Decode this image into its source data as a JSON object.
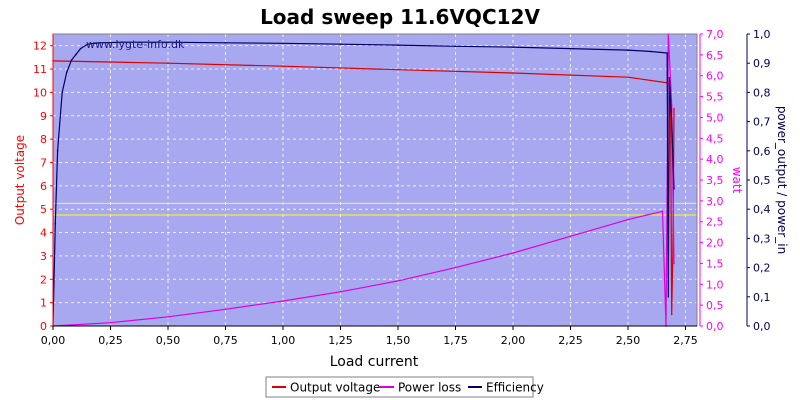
{
  "chart_data": {
    "type": "line",
    "title": "Load sweep 11.6VQC12V",
    "watermark": "www.lygte-info.dk",
    "xlabel": "Load current",
    "xlim": [
      0,
      2.8
    ],
    "x_ticks": [
      "0,00",
      "0,25",
      "0,50",
      "0,75",
      "1,00",
      "1,25",
      "1,50",
      "1,75",
      "2,00",
      "2,25",
      "2,50",
      "2,75"
    ],
    "axes": {
      "left": {
        "label": "Output voltage",
        "color": "#ff0000",
        "range": [
          0,
          12.5
        ],
        "ticks": [
          "0",
          "1",
          "2",
          "3",
          "4",
          "5",
          "6",
          "7",
          "8",
          "9",
          "10",
          "11",
          "12"
        ]
      },
      "right1": {
        "label": "watt",
        "color": "#ff00ff",
        "range": [
          0,
          7
        ],
        "ticks": [
          "0,0",
          "0,5",
          "1,0",
          "1,5",
          "2,0",
          "2,5",
          "3,0",
          "3,5",
          "4,0",
          "4,5",
          "5,0",
          "5,5",
          "6,0",
          "6,5",
          "7,0"
        ]
      },
      "right2": {
        "label": "power_output / power_in",
        "color": "#000055",
        "range": [
          0,
          1
        ],
        "ticks": [
          "0,0",
          "0,1",
          "0,2",
          "0,3",
          "0,4",
          "0,5",
          "0,6",
          "0,7",
          "0,8",
          "0,9",
          "1,0"
        ]
      }
    },
    "reference_lines": {
      "axis": "left",
      "values": [
        4.75,
        5.25
      ],
      "color": "#ffff00"
    },
    "series": [
      {
        "name": "Output voltage",
        "axis": "left",
        "color": "#dd0000",
        "x": [
          0,
          0.5,
          1.0,
          1.5,
          2.0,
          2.5,
          2.68,
          2.685,
          2.69,
          2.695,
          2.7
        ],
        "y": [
          11.35,
          11.25,
          11.12,
          10.97,
          10.83,
          10.65,
          10.4,
          9.0,
          0.5,
          3.2,
          9.3
        ]
      },
      {
        "name": "Power loss",
        "axis": "right1",
        "color": "#dd00dd",
        "x": [
          0,
          0.25,
          0.5,
          0.75,
          1.0,
          1.25,
          1.5,
          1.75,
          2.0,
          2.25,
          2.5,
          2.65,
          2.665,
          2.675,
          2.69,
          2.7
        ],
        "y": [
          0.0,
          0.08,
          0.22,
          0.4,
          0.6,
          0.82,
          1.08,
          1.4,
          1.75,
          2.15,
          2.55,
          2.75,
          0.0,
          7.0,
          5.3,
          1.5
        ]
      },
      {
        "name": "Efficiency",
        "axis": "right2",
        "color": "#000066",
        "x": [
          0,
          0.01,
          0.02,
          0.04,
          0.06,
          0.08,
          0.1,
          0.12,
          0.15,
          0.2,
          0.3,
          0.5,
          0.75,
          1.0,
          1.25,
          1.5,
          1.75,
          2.0,
          2.25,
          2.5,
          2.6,
          2.67,
          2.675,
          2.68,
          2.69,
          2.7
        ],
        "y": [
          0.0,
          0.35,
          0.6,
          0.8,
          0.87,
          0.91,
          0.93,
          0.95,
          0.965,
          0.97,
          0.972,
          0.972,
          0.97,
          0.968,
          0.965,
          0.962,
          0.958,
          0.955,
          0.95,
          0.945,
          0.94,
          0.935,
          0.1,
          0.85,
          0.7,
          0.47
        ]
      }
    ],
    "legend": {
      "position": "bottom-center",
      "entries": [
        "Output voltage",
        "Power loss",
        "Efficiency"
      ]
    },
    "grid": true,
    "background": "#a8a8f0"
  }
}
